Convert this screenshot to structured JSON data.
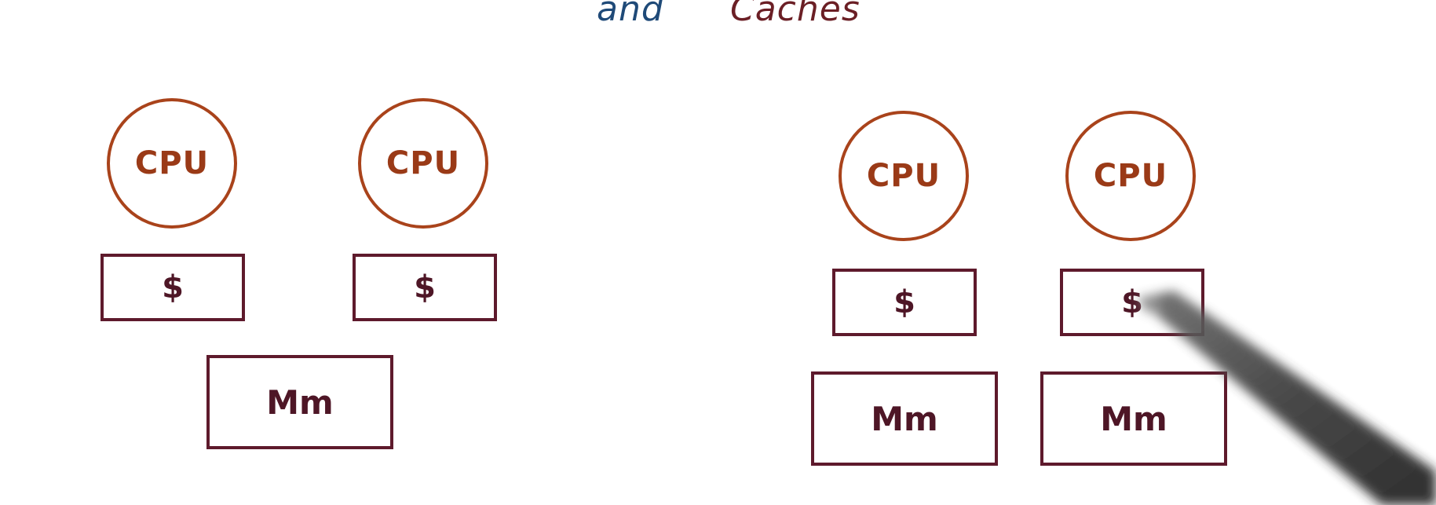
{
  "title": {
    "word1": "and",
    "word2": "Caches"
  },
  "left_system": {
    "cpus": [
      {
        "label": "CPU"
      },
      {
        "label": "CPU"
      }
    ],
    "caches": [
      {
        "label": "$"
      },
      {
        "label": "$"
      }
    ],
    "memory": {
      "label": "Mm"
    }
  },
  "right_system": {
    "cpus": [
      {
        "label": "CPU"
      },
      {
        "label": "CPU"
      }
    ],
    "caches": [
      {
        "label": "$"
      },
      {
        "label": "$"
      }
    ],
    "memories": [
      {
        "label": "Mm"
      },
      {
        "label": "Mm"
      }
    ]
  },
  "colors": {
    "cpu_stroke": "#a9431b",
    "box_stroke": "#5e1a2c",
    "title_and": "#1f4a78",
    "title_caches": "#6b1f25"
  }
}
